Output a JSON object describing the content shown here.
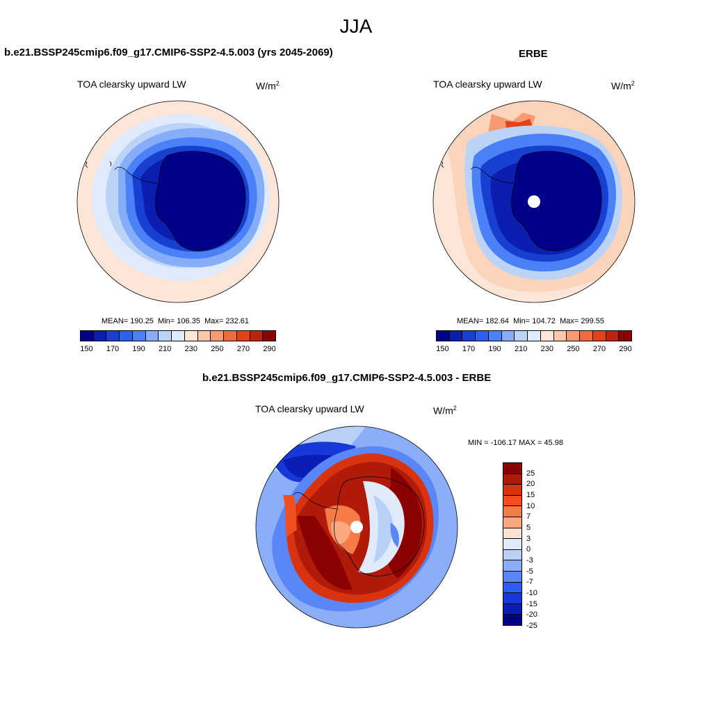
{
  "page": {
    "season": "JJA"
  },
  "palettes": {
    "abs": [
      "#00008b",
      "#0a1fb0",
      "#1740d0",
      "#2b5ff0",
      "#4a80f8",
      "#86aef8",
      "#bcd3f8",
      "#dfeafc",
      "#fde6d8",
      "#fbc8a8",
      "#f79a72",
      "#f26b3f",
      "#e34218",
      "#c02210",
      "#8b0000"
    ],
    "diff": [
      "#8b0000",
      "#b01a0a",
      "#d8320f",
      "#f05020",
      "#f57c48",
      "#f9a880",
      "#fde2cf",
      "#e0ebfa",
      "#b9d0f8",
      "#8aaef8",
      "#5a86f6",
      "#2e5ef2",
      "#1638d8",
      "#0a1db4",
      "#000083"
    ]
  },
  "panels": {
    "model": {
      "title": "b.e21.BSSP245cmip6.f09_g17.CMIP6-SSP2-4.5.003 (yrs 2045-2069)",
      "variable": "TOA clearsky upward LW",
      "units": "W/m",
      "units_sup": "2",
      "mean_label": "MEAN=",
      "mean": "190.25",
      "min_label": "Min=",
      "min": "106.35",
      "max_label": "Max=",
      "max": "232.61",
      "ticks": [
        "150",
        "170",
        "190",
        "210",
        "230",
        "250",
        "270",
        "290"
      ]
    },
    "obs": {
      "title": "ERBE",
      "variable": "TOA clearsky upward LW",
      "units": "W/m",
      "units_sup": "2",
      "mean_label": "MEAN=",
      "mean": "182.64",
      "min_label": "Min=",
      "min": "104.72",
      "max_label": "Max=",
      "max": "299.55",
      "ticks": [
        "150",
        "170",
        "190",
        "210",
        "230",
        "250",
        "270",
        "290"
      ]
    },
    "diff": {
      "title": "b.e21.BSSP245cmip6.f09_g17.CMIP6-SSP2-4.5.003 - ERBE",
      "variable": "TOA clearsky upward LW",
      "units": "W/m",
      "units_sup": "2",
      "minmax": "MIN = -106.17 MAX =  45.98",
      "ticks": [
        "25",
        "20",
        "15",
        "10",
        "7",
        "5",
        "3",
        "0",
        "-3",
        "-5",
        "-7",
        "-10",
        "-15",
        "-20",
        "-25"
      ]
    }
  }
}
